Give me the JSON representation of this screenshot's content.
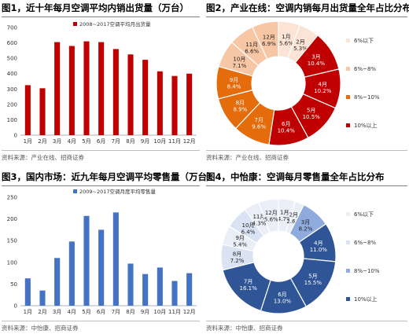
{
  "charts": [
    {
      "title": "图1，近十年每月空调平均内销出货量（万台）",
      "source": "资料来源：产业在线、招商证券",
      "chart_data": {
        "type": "bar",
        "categories": [
          "1月",
          "2月",
          "3月",
          "4月",
          "5月",
          "6月",
          "7月",
          "8月",
          "9月",
          "10月",
          "11月",
          "12月"
        ],
        "series": [
          {
            "name": "2008~2017空调平均月出货量",
            "values": [
              325,
              305,
              605,
              580,
              610,
              605,
              560,
              525,
              490,
              415,
              385,
              400
            ],
            "color": "#c00000"
          }
        ],
        "ylim": [
          0,
          700
        ],
        "yticks": [
          0,
          100,
          200,
          300,
          400,
          500,
          600,
          700
        ],
        "grid": false,
        "legend": "top-center"
      }
    },
    {
      "title": "图2，产业在线：空调内销每月出货量全年占比分布",
      "source": "资料来源：产业在线、招商证券",
      "chart_data": {
        "type": "pie",
        "donut": true,
        "slices": [
          {
            "label": "1月",
            "value": 5.6,
            "display": "5.6%"
          },
          {
            "label": "2月",
            "value": 5.3,
            "display": "5.3%"
          },
          {
            "label": "3月",
            "value": 10.4,
            "display": "10.4%"
          },
          {
            "label": "4月",
            "value": 10.2,
            "display": "10.2%"
          },
          {
            "label": "5月",
            "value": 10.5,
            "display": "10.5%"
          },
          {
            "label": "6月",
            "value": 10.4,
            "display": "10.4%"
          },
          {
            "label": "7月",
            "value": 9.6,
            "display": "9.6%"
          },
          {
            "label": "8月",
            "value": 8.9,
            "display": "8.9%"
          },
          {
            "label": "9月",
            "value": 8.4,
            "display": "8.4%"
          },
          {
            "label": "10月",
            "value": 7.1,
            "display": "7.1%"
          },
          {
            "label": "11月",
            "value": 6.6,
            "display": "6.6%"
          },
          {
            "label": "12月",
            "value": 6.9,
            "display": "6.9%"
          }
        ],
        "legend_entries": [
          {
            "label": "6%以下",
            "color": "#fbe4d5"
          },
          {
            "label": "6%~8%",
            "color": "#f7c6a5"
          },
          {
            "label": "8%~10%",
            "color": "#e46c0a"
          },
          {
            "label": "10%以上",
            "color": "#c00000"
          }
        ],
        "thresholds": [
          6,
          8,
          10
        ],
        "legend": "right"
      }
    },
    {
      "title": "图3，国内市场：近九年每月空调平均零售量（万台）",
      "source": "资料来源：中怡康、招商证券",
      "chart_data": {
        "type": "bar",
        "categories": [
          "1月",
          "2月",
          "3月",
          "4月",
          "5月",
          "6月",
          "7月",
          "8月",
          "9月",
          "10月",
          "11月",
          "12月"
        ],
        "series": [
          {
            "name": "2009~2017空调月度平均零售量",
            "values": [
              63,
              35,
              110,
              148,
              207,
              175,
              215,
              97,
              73,
              88,
              57,
              75
            ],
            "color": "#4472c4"
          }
        ],
        "ylim": [
          0,
          250
        ],
        "yticks": [
          0,
          50,
          100,
          150,
          200,
          250
        ],
        "grid": false,
        "legend": "top-center"
      }
    },
    {
      "title": "图4，中怡康：空调每月零售量全年占比分布",
      "source": "资料来源：中怡康、招商证券",
      "chart_data": {
        "type": "pie",
        "donut": true,
        "slices": [
          {
            "label": "1月",
            "value": 4.7,
            "display": "4.7%"
          },
          {
            "label": "2月",
            "value": 2.6,
            "display": "2.6%"
          },
          {
            "label": "3月",
            "value": 8.2,
            "display": "8.2%"
          },
          {
            "label": "4月",
            "value": 11.0,
            "display": "11.0%"
          },
          {
            "label": "5月",
            "value": 15.5,
            "display": "15.5%"
          },
          {
            "label": "6月",
            "value": 13.0,
            "display": "13.0%"
          },
          {
            "label": "7月",
            "value": 16.1,
            "display": "16.1%"
          },
          {
            "label": "8月",
            "value": 7.2,
            "display": "7.2%"
          },
          {
            "label": "9月",
            "value": 5.4,
            "display": "5.4%"
          },
          {
            "label": "10月",
            "value": 6.4,
            "display": "6.4%"
          },
          {
            "label": "11月",
            "value": 4.3,
            "display": "4.3%"
          },
          {
            "label": "12月",
            "value": 5.6,
            "display": "5.6%"
          }
        ],
        "legend_entries": [
          {
            "label": "6%以下",
            "color": "#e9eef7"
          },
          {
            "label": "6%~8%",
            "color": "#dae3f3"
          },
          {
            "label": "8%~10%",
            "color": "#8faadc"
          },
          {
            "label": "10%以上",
            "color": "#2f5597"
          }
        ],
        "thresholds": [
          6,
          8,
          10
        ],
        "legend": "right"
      }
    }
  ]
}
